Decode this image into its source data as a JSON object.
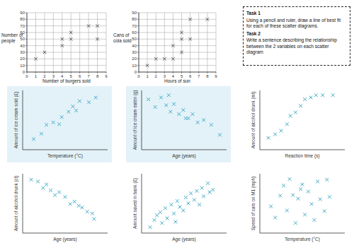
{
  "chart_data": [
    {
      "type": "scatter",
      "x_label": "Number of burgers sold",
      "y_label": "Number of people",
      "x": [
        1,
        2,
        4,
        4,
        5,
        5,
        7,
        8,
        8
      ],
      "values": [
        20,
        30,
        40,
        50,
        50,
        60,
        70,
        70,
        50
      ],
      "xlim": [
        0,
        9
      ],
      "ylim": [
        0,
        90
      ],
      "xticks": [
        0,
        1,
        2,
        3,
        4,
        5,
        6,
        7,
        8,
        9
      ],
      "yticks": [
        0,
        10,
        20,
        30,
        40,
        50,
        60,
        70,
        80,
        90
      ],
      "grid": true,
      "color": "#333333",
      "marker": "x"
    },
    {
      "type": "scatter",
      "x_label": "Hours of sun",
      "y_label": "Cans of cola sold",
      "x": [
        1,
        2,
        3,
        4,
        4,
        5,
        5,
        5,
        6,
        6,
        8
      ],
      "values": [
        10,
        20,
        20,
        20,
        40,
        30,
        50,
        60,
        50,
        80,
        80
      ],
      "xlim": [
        0,
        9
      ],
      "ylim": [
        0,
        90
      ],
      "xticks": [
        0,
        1,
        2,
        3,
        4,
        5,
        6,
        7,
        8,
        9
      ],
      "yticks": [
        0,
        10,
        20,
        30,
        40,
        50,
        60,
        70,
        80,
        90
      ],
      "grid": true,
      "color": "#333333",
      "marker": "x"
    },
    {
      "type": "scatter",
      "x_label": "Temperature (°C)",
      "y_label": "Amount of ice cream sold (£)",
      "x": [
        1.3,
        2.2,
        2.8,
        3.6,
        4.3,
        4.6,
        5.4,
        5.9,
        6.3,
        6.7,
        7.8,
        8.6
      ],
      "values": [
        1.8,
        2.7,
        4.2,
        4.6,
        4.3,
        5.5,
        6.4,
        7.3,
        6.6,
        8.2,
        8.0,
        8.8
      ],
      "xlim": [
        0,
        10
      ],
      "ylim": [
        0,
        10
      ],
      "grid": false,
      "tick_labels": false,
      "color": "#3fa9c4",
      "marker": "x"
    },
    {
      "type": "scatter",
      "x_label": "Age (years)",
      "y_label": "Amount of ice cream eaten (g)",
      "x": [
        0.8,
        1.6,
        2.3,
        2.9,
        3.2,
        3.4,
        3.8,
        4.4,
        4.9,
        5.2,
        5.5,
        6.0,
        6.6,
        7.3,
        8.2,
        9.2
      ],
      "values": [
        8.5,
        7.2,
        8.8,
        7.5,
        9.2,
        6.4,
        7.7,
        6.0,
        6.7,
        5.3,
        5.3,
        6.0,
        4.6,
        5.0,
        4.2,
        2.5
      ],
      "xlim": [
        0,
        10
      ],
      "ylim": [
        0,
        10
      ],
      "grid": false,
      "tick_labels": false,
      "color": "#3fa9c4",
      "marker": "x"
    },
    {
      "type": "scatter",
      "x_label": "Reaction time (s)",
      "y_label": "Amount of alcohol drunk (ml)",
      "x": [
        1.0,
        1.8,
        2.5,
        3.2,
        3.6,
        4.2,
        4.8,
        5.3,
        6.0,
        6.6,
        7.4,
        8.6
      ],
      "values": [
        2.0,
        2.6,
        3.2,
        4.3,
        5.7,
        6.3,
        7.4,
        8.5,
        8.8,
        9.2,
        9.2,
        9.2
      ],
      "xlim": [
        0,
        10
      ],
      "ylim": [
        0,
        10
      ],
      "grid": false,
      "tick_labels": false,
      "color": "#3fa9c4",
      "marker": "x"
    },
    {
      "type": "scatter",
      "x_label": "Age (years)",
      "y_label": "Amount of alcohol drunk (cl)",
      "x": [
        1.0,
        1.8,
        2.4,
        2.8,
        3.3,
        3.8,
        4.3,
        5.0,
        5.6,
        6.1,
        6.6,
        7.0,
        7.6,
        8.2,
        8.4
      ],
      "values": [
        9.0,
        8.7,
        7.6,
        8.2,
        7.2,
        6.4,
        6.9,
        6.1,
        4.9,
        5.3,
        4.6,
        4.3,
        3.6,
        3.3,
        2.4
      ],
      "xlim": [
        0,
        10
      ],
      "ylim": [
        0,
        10
      ],
      "grid": false,
      "tick_labels": false,
      "color": "#3fa9c4",
      "marker": "x"
    },
    {
      "type": "scatter",
      "x_label": "Age (years)",
      "y_label": "Amount saved in bank (£)",
      "x": [
        1.0,
        1.5,
        1.8,
        2.2,
        2.4,
        2.8,
        3.0,
        3.5,
        3.8,
        4.0,
        4.2,
        4.5,
        4.9,
        5.2,
        5.5,
        5.8,
        6.2,
        6.5,
        6.8,
        7.1,
        7.3,
        7.8,
        8.0,
        8.4
      ],
      "values": [
        1.0,
        2.2,
        3.0,
        3.5,
        1.7,
        4.2,
        2.5,
        4.8,
        3.3,
        1.9,
        5.4,
        4.4,
        3.8,
        6.0,
        5.0,
        6.7,
        5.6,
        7.1,
        4.8,
        7.6,
        6.2,
        8.4,
        6.9,
        7.3
      ],
      "xlim": [
        0,
        10
      ],
      "ylim": [
        0,
        10
      ],
      "grid": false,
      "tick_labels": false,
      "color": "#3fa9c4",
      "marker": "x"
    },
    {
      "type": "scatter",
      "x_label": "Temperature (°C)",
      "y_label": "Speed of cars on M1 (mph)",
      "x": [
        1.3,
        1.8,
        2.4,
        2.8,
        3.2,
        3.5,
        3.9,
        4.2,
        4.5,
        4.8,
        5.0,
        5.3,
        5.7,
        6.1,
        6.4,
        6.8,
        7.1,
        7.6,
        7.9,
        8.2
      ],
      "values": [
        4.5,
        2.6,
        6.3,
        8.0,
        3.8,
        9.1,
        6.4,
        1.7,
        5.8,
        7.4,
        8.2,
        3.1,
        7.0,
        4.9,
        2.2,
        8.7,
        5.7,
        3.7,
        9.0,
        6.1
      ],
      "xlim": [
        0,
        10
      ],
      "ylim": [
        0,
        10
      ],
      "grid": false,
      "tick_labels": false,
      "color": "#3fa9c4",
      "marker": "x"
    }
  ],
  "tasks": [
    {
      "heading": "Task 1",
      "text": "Using a pencil and ruler, draw a line of best fit for each of these scatter diagrams."
    },
    {
      "heading": "Task 2",
      "text": "Write a sentence describing the relationship between the 2 variables on each scatter diagram"
    }
  ]
}
